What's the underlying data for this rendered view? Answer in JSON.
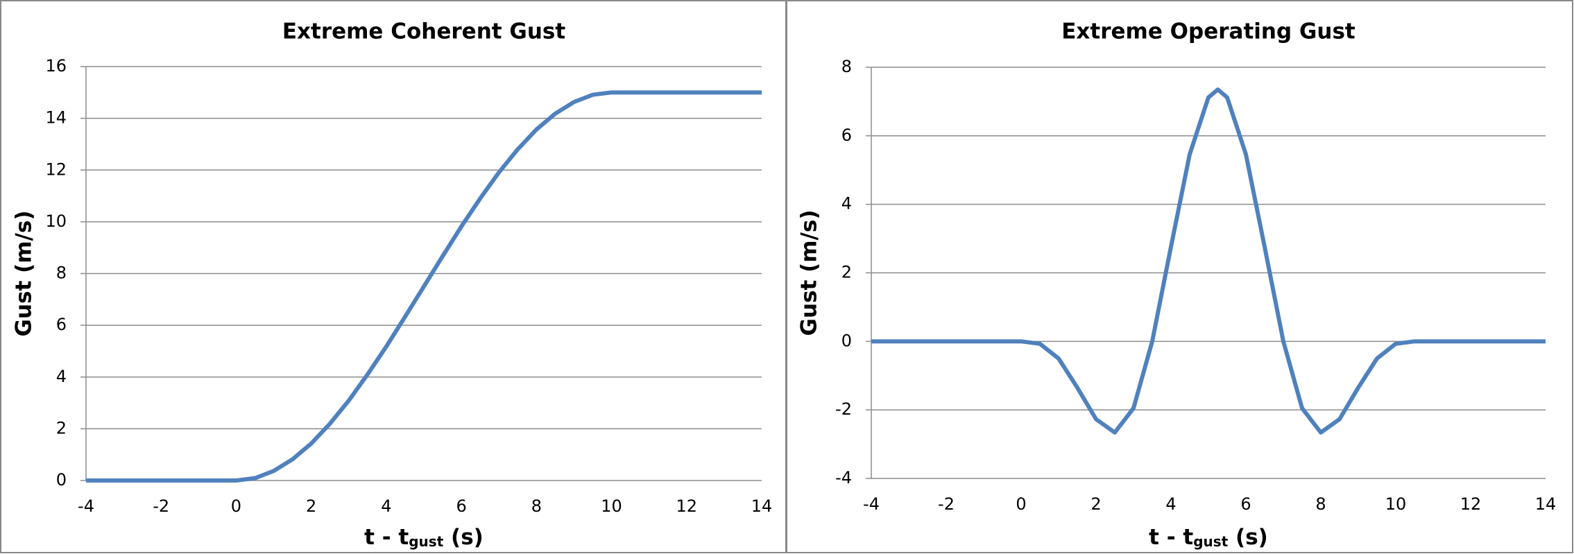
{
  "chart_data": [
    {
      "type": "line",
      "title": "Extreme Coherent Gust",
      "x_label": [
        "t - t",
        "gust",
        " (s)"
      ],
      "y_label": "Gust (m/s)",
      "x": [
        -4,
        -3,
        -2,
        -1,
        0,
        0.5,
        1,
        1.5,
        2,
        2.5,
        3,
        3.5,
        4,
        4.5,
        5,
        5.5,
        6,
        6.5,
        7,
        7.5,
        8,
        8.5,
        9,
        9.5,
        10,
        11,
        12,
        13,
        14
      ],
      "series": [
        {
          "color": "#4f81bd",
          "values": [
            0,
            0,
            0,
            0,
            0,
            0.09,
            0.37,
            0.82,
            1.43,
            2.2,
            3.09,
            4.1,
            5.18,
            6.33,
            7.5,
            8.67,
            9.82,
            10.9,
            11.91,
            12.8,
            13.57,
            14.18,
            14.63,
            14.91,
            15,
            15,
            15,
            15,
            15
          ]
        }
      ],
      "xlim": [
        -4,
        14
      ],
      "xticks": [
        -4,
        -2,
        0,
        2,
        4,
        6,
        8,
        10,
        12,
        14
      ],
      "ylim": [
        0,
        16
      ],
      "yticks": [
        0,
        2,
        4,
        6,
        8,
        10,
        12,
        14,
        16
      ],
      "grid": true
    },
    {
      "type": "line",
      "title": "Extreme Operating Gust",
      "x_label": [
        "t - t",
        "gust",
        " (s)"
      ],
      "y_label": "Gust (m/s)",
      "x": [
        -4,
        -3,
        -2,
        -1,
        0,
        0.5,
        1,
        1.5,
        2,
        2.5,
        3,
        3.5,
        4,
        4.5,
        5,
        5.25,
        5.5,
        6,
        6.5,
        7,
        7.5,
        8,
        8.5,
        9,
        9.5,
        10,
        10.5,
        11,
        12,
        13,
        14
      ],
      "series": [
        {
          "color": "#4f81bd",
          "values": [
            0,
            0,
            0,
            0,
            0,
            -0.07,
            -0.5,
            -1.35,
            -2.27,
            -2.66,
            -1.95,
            0,
            2.76,
            5.46,
            7.12,
            7.35,
            7.12,
            5.46,
            2.76,
            0,
            -1.95,
            -2.66,
            -2.27,
            -1.35,
            -0.5,
            -0.07,
            0,
            0,
            0,
            0,
            0
          ]
        }
      ],
      "xlim": [
        -4,
        14
      ],
      "xticks": [
        -4,
        -2,
        0,
        2,
        4,
        6,
        8,
        10,
        12,
        14
      ],
      "ylim": [
        -4,
        8
      ],
      "yticks": [
        -4,
        -2,
        0,
        2,
        4,
        6,
        8
      ],
      "grid": true
    }
  ]
}
